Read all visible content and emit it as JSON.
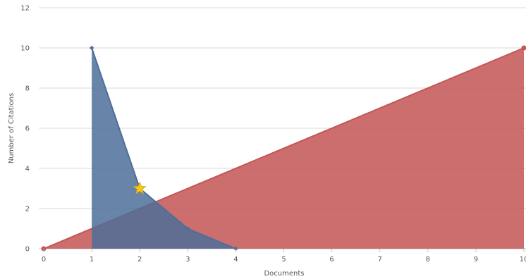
{
  "chart_data": {
    "type": "area",
    "xlabel": "Documents",
    "ylabel": "Number of Citations",
    "xlim": [
      0,
      10
    ],
    "ylim": [
      0,
      12
    ],
    "x_ticks": [
      "0",
      "1",
      "2",
      "3",
      "4",
      "5",
      "6",
      "7",
      "8",
      "9",
      "10"
    ],
    "y_ticks": [
      "0",
      "2",
      "4",
      "6",
      "8",
      "10",
      "12"
    ],
    "grid": true,
    "legend": "none",
    "series": [
      {
        "color": "#c45555",
        "x": [
          0,
          10
        ],
        "y": [
          0,
          10
        ]
      },
      {
        "color": "#4e6e99",
        "x": [
          1,
          2,
          3,
          4
        ],
        "y": [
          10,
          3,
          1,
          0
        ]
      }
    ],
    "marker": {
      "icon": "star-icon",
      "x": 2,
      "y": 3,
      "color": "#f5c518"
    }
  }
}
